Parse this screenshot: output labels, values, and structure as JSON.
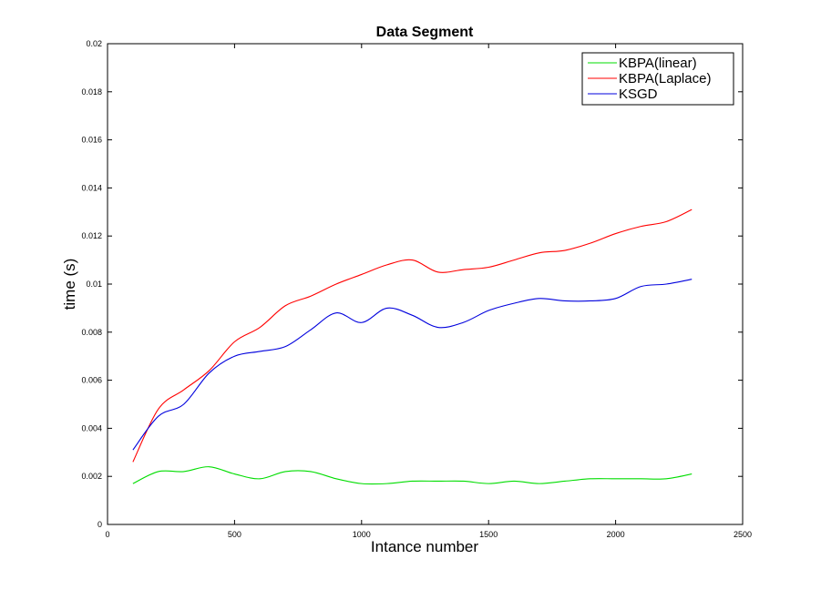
{
  "chart_data": {
    "type": "line",
    "title": "Data Segment",
    "xlabel": "Intance number",
    "ylabel": "time (s)",
    "xlim": [
      0,
      2500
    ],
    "ylim": [
      0,
      0.02
    ],
    "xticks": [
      0,
      500,
      1000,
      1500,
      2000,
      2500
    ],
    "xtick_labels": [
      "0",
      "500",
      "1000",
      "1500",
      "2000",
      "2500"
    ],
    "yticks": [
      0,
      0.002,
      0.004,
      0.006,
      0.008,
      0.01,
      0.012,
      0.014,
      0.016,
      0.018,
      0.02
    ],
    "ytick_labels": [
      "0",
      "0.002",
      "0.004",
      "0.006",
      "0.008",
      "0.01",
      "0.012",
      "0.014",
      "0.016",
      "0.018",
      "0.02"
    ],
    "grid": false,
    "legend_position": "top-right",
    "x": [
      100,
      200,
      300,
      400,
      500,
      600,
      700,
      800,
      900,
      1000,
      1100,
      1200,
      1300,
      1400,
      1500,
      1600,
      1700,
      1800,
      1900,
      2000,
      2100,
      2200,
      2300
    ],
    "series": [
      {
        "name": "KBPA(linear)",
        "color": "#00dd00",
        "values": [
          0.0017,
          0.0022,
          0.0022,
          0.0024,
          0.0021,
          0.0019,
          0.0022,
          0.0022,
          0.0019,
          0.0017,
          0.0017,
          0.0018,
          0.0018,
          0.0018,
          0.0017,
          0.0018,
          0.0017,
          0.0018,
          0.0019,
          0.0019,
          0.0019,
          0.0019,
          0.0021
        ]
      },
      {
        "name": "KBPA(Laplace)",
        "color": "#ff0000",
        "values": [
          0.0026,
          0.0048,
          0.0056,
          0.0064,
          0.0076,
          0.0082,
          0.0091,
          0.0095,
          0.01,
          0.0104,
          0.0108,
          0.011,
          0.0105,
          0.0106,
          0.0107,
          0.011,
          0.0113,
          0.0114,
          0.0117,
          0.0121,
          0.0124,
          0.0126,
          0.0131
        ]
      },
      {
        "name": "KSGD",
        "color": "#0000dd",
        "values": [
          0.0031,
          0.0045,
          0.005,
          0.0063,
          0.007,
          0.0072,
          0.0074,
          0.0081,
          0.0088,
          0.0084,
          0.009,
          0.0087,
          0.0082,
          0.0084,
          0.0089,
          0.0092,
          0.0094,
          0.0093,
          0.0093,
          0.0094,
          0.0099,
          0.01,
          0.0102
        ]
      }
    ]
  }
}
